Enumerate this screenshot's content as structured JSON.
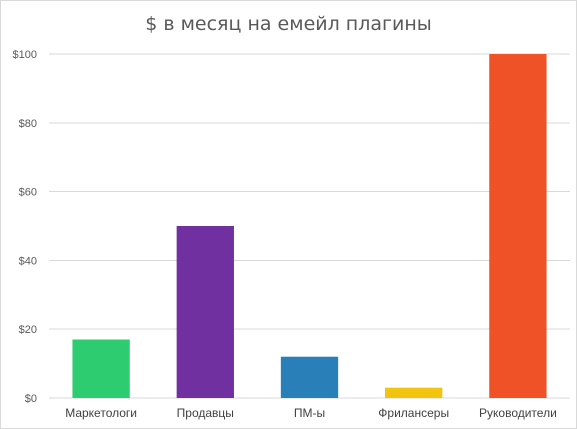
{
  "chart_data": {
    "type": "bar",
    "title": "$ в месяц на емейл плагины",
    "xlabel": "",
    "ylabel": "",
    "categories": [
      "Маркетологи",
      "Продавцы",
      "ПМ-ы",
      "Фрилансеры",
      "Руководители"
    ],
    "values": [
      17,
      50,
      12,
      3,
      100
    ],
    "colors": [
      "#2ecc71",
      "#7030a0",
      "#2980b9",
      "#f1c40f",
      "#f05228"
    ],
    "ylim": [
      0,
      100
    ],
    "yticks": [
      0,
      20,
      40,
      60,
      80,
      100
    ],
    "ytick_labels": [
      "$0",
      "$20",
      "$40",
      "$60",
      "$80",
      "$100"
    ],
    "grid": true,
    "gridline_color": "#d9d9d9"
  }
}
